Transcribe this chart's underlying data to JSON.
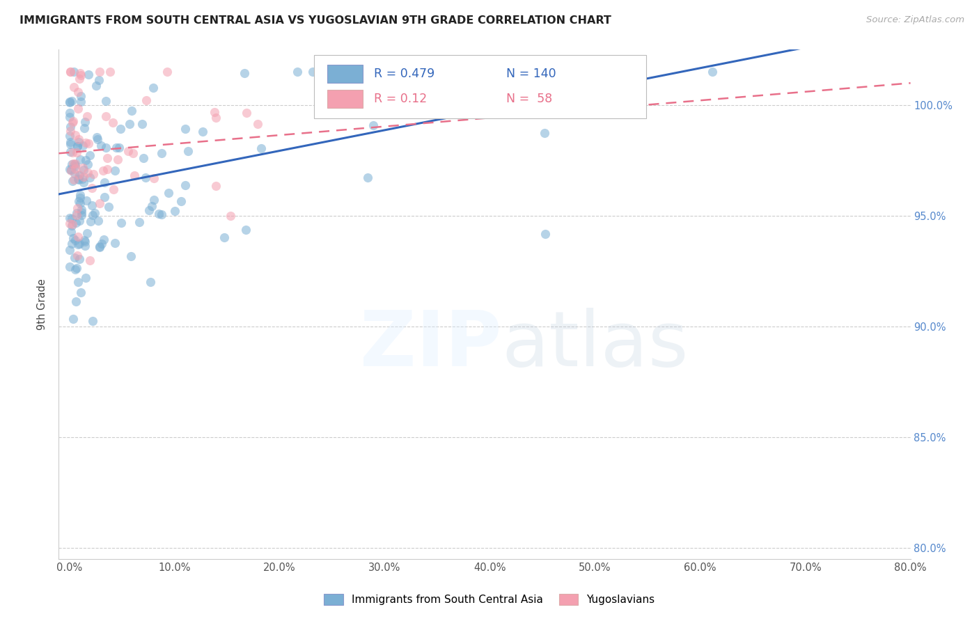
{
  "title": "IMMIGRANTS FROM SOUTH CENTRAL ASIA VS YUGOSLAVIAN 9TH GRADE CORRELATION CHART",
  "source": "Source: ZipAtlas.com",
  "ylabel": "9th Grade",
  "x_tick_labels": [
    "0.0%",
    "10.0%",
    "20.0%",
    "30.0%",
    "40.0%",
    "50.0%",
    "60.0%",
    "70.0%",
    "80.0%"
  ],
  "x_tick_values": [
    0.0,
    10.0,
    20.0,
    30.0,
    40.0,
    50.0,
    60.0,
    70.0,
    80.0
  ],
  "y_tick_labels": [
    "80.0%",
    "85.0%",
    "90.0%",
    "95.0%",
    "100.0%"
  ],
  "y_tick_values": [
    80.0,
    85.0,
    90.0,
    95.0,
    100.0
  ],
  "xlim": [
    -1.0,
    80.0
  ],
  "ylim": [
    79.5,
    102.5
  ],
  "blue_R": 0.479,
  "blue_N": 140,
  "pink_R": 0.12,
  "pink_N": 58,
  "blue_color": "#7BAFD4",
  "pink_color": "#F4A0B0",
  "blue_line_color": "#3366BB",
  "pink_line_color": "#E8708A",
  "legend_label_blue": "Immigrants from South Central Asia",
  "legend_label_pink": "Yugoslavians",
  "blue_seed": 12,
  "pink_seed": 7
}
